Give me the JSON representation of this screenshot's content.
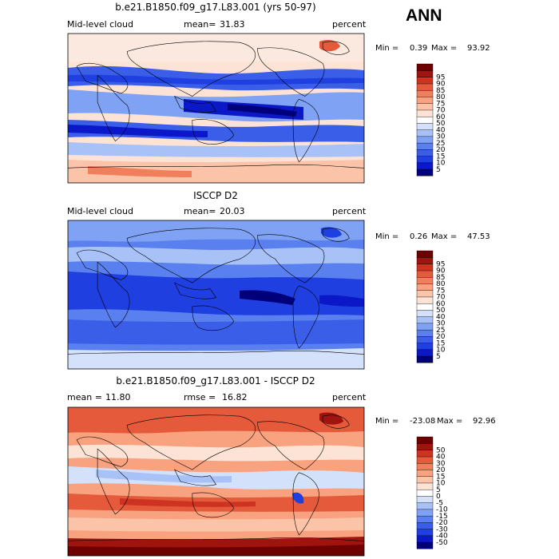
{
  "season": "ANN",
  "colors": {
    "abs_scale": [
      "#00007a",
      "#0b18c8",
      "#1f3fe0",
      "#3a5ee8",
      "#5a80f0",
      "#7fa2f4",
      "#a8c2f8",
      "#d4e1fb",
      "#ffffff",
      "#fde3d5",
      "#fbc4a9",
      "#f8a27f",
      "#f17f5c",
      "#e45a3b",
      "#cd3320",
      "#a0140f",
      "#6f0000"
    ],
    "diff_scale": [
      "#00007a",
      "#0b18c8",
      "#1f3fe0",
      "#3a5ee8",
      "#5a80f0",
      "#7fa2f4",
      "#a8c2f8",
      "#d4e1fb",
      "#ffffff",
      "#fde3d5",
      "#fbc4a9",
      "#f8a27f",
      "#f17f5c",
      "#e45a3b",
      "#cd3320",
      "#a0140f",
      "#6f0000"
    ]
  },
  "chart_data": [
    {
      "type": "heatmap",
      "panel": "model",
      "title": "b.e21.B1850.f09_g17.L83.001 (yrs 50-97)",
      "variable": "Mid-level cloud",
      "mean_label": "mean=",
      "mean": "31.83",
      "units": "percent",
      "min_label": "Min =",
      "min": "0.39",
      "max_label": "Max =",
      "max": "93.92",
      "colorbar_levels": [
        "5",
        "10",
        "15",
        "20",
        "25",
        "30",
        "40",
        "50",
        "60",
        "70",
        "75",
        "80",
        "85",
        "90",
        "95"
      ]
    },
    {
      "type": "heatmap",
      "panel": "obs",
      "title": "ISCCP D2",
      "variable": "Mid-level cloud",
      "mean_label": "mean=",
      "mean": "20.03",
      "units": "percent",
      "min_label": "Min =",
      "min": "0.26",
      "max_label": "Max =",
      "max": "47.53",
      "colorbar_levels": [
        "5",
        "10",
        "15",
        "20",
        "25",
        "30",
        "40",
        "50",
        "60",
        "70",
        "75",
        "80",
        "85",
        "90",
        "95"
      ]
    },
    {
      "type": "heatmap",
      "panel": "difference",
      "title": "b.e21.B1850.f09_g17.L83.001 - ISCCP D2",
      "mean_label": "mean =",
      "mean": "11.80",
      "rmse_label": "rmse =",
      "rmse": "16.82",
      "units": "percent",
      "min_label": "Min =",
      "min": "-23.08",
      "max_label": "Max =",
      "max": "92.96",
      "colorbar_levels": [
        "-50",
        "-40",
        "-30",
        "-20",
        "-15",
        "-10",
        "-5",
        "0",
        "5",
        "10",
        "15",
        "20",
        "30",
        "40",
        "50"
      ]
    }
  ]
}
